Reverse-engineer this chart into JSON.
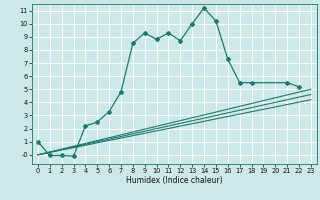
{
  "title": "",
  "xlabel": "Humidex (Indice chaleur)",
  "bg_color": "#cce8e8",
  "line_color": "#1a7a6e",
  "grid_color": "#ffffff",
  "xlim": [
    -0.5,
    23.5
  ],
  "ylim": [
    -0.7,
    11.5
  ],
  "xticks": [
    0,
    1,
    2,
    3,
    4,
    5,
    6,
    7,
    8,
    9,
    10,
    11,
    12,
    13,
    14,
    15,
    16,
    17,
    18,
    19,
    20,
    21,
    22,
    23
  ],
  "yticks": [
    0,
    1,
    2,
    3,
    4,
    5,
    6,
    7,
    8,
    9,
    10,
    11
  ],
  "main_x": [
    0,
    1,
    2,
    3,
    4,
    5,
    6,
    7,
    8,
    9,
    10,
    11,
    12,
    13,
    14,
    15,
    16,
    17,
    18,
    21,
    22
  ],
  "main_y": [
    1.0,
    -0.05,
    -0.05,
    -0.1,
    2.2,
    2.5,
    3.3,
    4.8,
    8.5,
    9.3,
    8.8,
    9.3,
    8.7,
    10.0,
    11.2,
    10.2,
    7.3,
    5.5,
    5.5,
    5.5,
    5.2
  ],
  "ref_lines": [
    {
      "x": [
        0,
        23
      ],
      "y": [
        0,
        5.0
      ]
    },
    {
      "x": [
        0,
        23
      ],
      "y": [
        0,
        4.6
      ]
    },
    {
      "x": [
        0,
        23
      ],
      "y": [
        0,
        4.2
      ]
    }
  ]
}
